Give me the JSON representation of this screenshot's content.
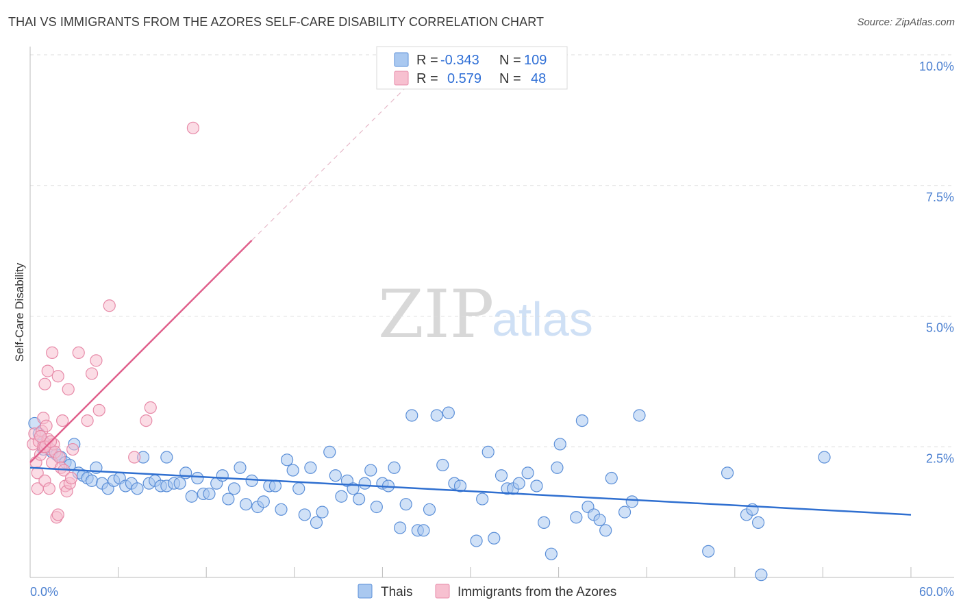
{
  "header": {
    "title": "THAI VS IMMIGRANTS FROM THE AZORES SELF-CARE DISABILITY CORRELATION CHART",
    "source": "Source: ZipAtlas.com"
  },
  "watermark": {
    "part1": "ZIP",
    "part2": "atlas"
  },
  "colors": {
    "thai_fill": "#a9c8f0",
    "thai_stroke": "#5b8fd8",
    "thai_line": "#2f6fd0",
    "azores_fill": "#f7c0d0",
    "azores_stroke": "#e78aa8",
    "azores_line": "#e0608c",
    "tick_label": "#4a7fd0",
    "grid": "#dddddd"
  },
  "legend": {
    "rows": [
      {
        "r_label": "R =",
        "r_value": "-0.343",
        "n_label": "N =",
        "n_value": "109"
      },
      {
        "r_label": "R =",
        "r_value": "0.579",
        "n_label": "N =",
        "n_value": "48"
      }
    ]
  },
  "chart_data": {
    "type": "scatter",
    "title": "THAI VS IMMIGRANTS FROM THE AZORES SELF-CARE DISABILITY CORRELATION CHART",
    "xlabel": "",
    "ylabel": "Self-Care Disability",
    "xlim": [
      0,
      60
    ],
    "ylim": [
      0,
      10.0
    ],
    "x_tick_labels": [
      "0.0%",
      "60.0%"
    ],
    "y_ticks": [
      2.5,
      5.0,
      7.5,
      10.0
    ],
    "y_tick_labels": [
      "2.5%",
      "5.0%",
      "7.5%",
      "10.0%"
    ],
    "series": [
      {
        "name": "Thais",
        "points": [
          [
            0.3,
            2.95
          ],
          [
            0.6,
            2.75
          ],
          [
            0.9,
            2.6
          ],
          [
            1.2,
            2.5
          ],
          [
            1.5,
            2.4
          ],
          [
            1.8,
            2.35
          ],
          [
            2.1,
            2.3
          ],
          [
            2.4,
            2.2
          ],
          [
            2.7,
            2.15
          ],
          [
            3.0,
            2.55
          ],
          [
            3.3,
            2.0
          ],
          [
            3.6,
            1.95
          ],
          [
            3.9,
            1.9
          ],
          [
            4.2,
            1.85
          ],
          [
            4.5,
            2.1
          ],
          [
            4.9,
            1.8
          ],
          [
            5.3,
            1.7
          ],
          [
            5.7,
            1.85
          ],
          [
            6.1,
            1.9
          ],
          [
            6.5,
            1.75
          ],
          [
            6.9,
            1.8
          ],
          [
            7.3,
            1.7
          ],
          [
            7.7,
            2.3
          ],
          [
            8.1,
            1.8
          ],
          [
            8.5,
            1.85
          ],
          [
            8.9,
            1.75
          ],
          [
            9.3,
            1.75
          ],
          [
            9.3,
            2.3
          ],
          [
            9.8,
            1.8
          ],
          [
            10.2,
            1.8
          ],
          [
            10.6,
            2.0
          ],
          [
            11.0,
            1.55
          ],
          [
            11.4,
            1.9
          ],
          [
            11.8,
            1.6
          ],
          [
            12.2,
            1.6
          ],
          [
            12.7,
            1.8
          ],
          [
            13.1,
            1.95
          ],
          [
            13.5,
            1.5
          ],
          [
            13.9,
            1.7
          ],
          [
            14.3,
            2.1
          ],
          [
            14.7,
            1.4
          ],
          [
            15.1,
            1.85
          ],
          [
            15.5,
            1.35
          ],
          [
            15.9,
            1.45
          ],
          [
            16.3,
            1.75
          ],
          [
            16.7,
            1.75
          ],
          [
            17.1,
            1.3
          ],
          [
            17.5,
            2.25
          ],
          [
            17.9,
            2.05
          ],
          [
            18.3,
            1.7
          ],
          [
            18.7,
            1.2
          ],
          [
            19.1,
            2.1
          ],
          [
            19.5,
            1.05
          ],
          [
            19.9,
            1.25
          ],
          [
            20.4,
            2.4
          ],
          [
            20.8,
            1.95
          ],
          [
            21.2,
            1.55
          ],
          [
            21.6,
            1.85
          ],
          [
            22.0,
            1.7
          ],
          [
            22.4,
            1.5
          ],
          [
            22.8,
            1.8
          ],
          [
            23.2,
            2.05
          ],
          [
            23.6,
            1.35
          ],
          [
            24.0,
            1.8
          ],
          [
            24.4,
            1.75
          ],
          [
            24.8,
            2.1
          ],
          [
            25.2,
            0.95
          ],
          [
            25.6,
            1.4
          ],
          [
            26.0,
            3.1
          ],
          [
            26.4,
            0.9
          ],
          [
            26.8,
            0.9
          ],
          [
            27.2,
            1.3
          ],
          [
            27.7,
            3.1
          ],
          [
            28.1,
            2.15
          ],
          [
            28.5,
            3.15
          ],
          [
            28.9,
            1.8
          ],
          [
            29.3,
            1.75
          ],
          [
            30.4,
            0.7
          ],
          [
            30.8,
            1.5
          ],
          [
            31.2,
            2.4
          ],
          [
            31.6,
            0.75
          ],
          [
            32.1,
            1.95
          ],
          [
            32.5,
            1.7
          ],
          [
            32.9,
            1.7
          ],
          [
            33.3,
            1.8
          ],
          [
            33.9,
            2.0
          ],
          [
            34.5,
            1.75
          ],
          [
            35.0,
            1.05
          ],
          [
            35.5,
            0.45
          ],
          [
            35.9,
            2.1
          ],
          [
            36.1,
            2.55
          ],
          [
            37.2,
            1.15
          ],
          [
            37.6,
            3.0
          ],
          [
            38.0,
            1.35
          ],
          [
            38.4,
            1.2
          ],
          [
            38.8,
            1.1
          ],
          [
            39.2,
            0.9
          ],
          [
            39.6,
            1.9
          ],
          [
            40.5,
            1.25
          ],
          [
            41.0,
            1.45
          ],
          [
            41.5,
            3.1
          ],
          [
            46.2,
            0.5
          ],
          [
            47.5,
            2.0
          ],
          [
            48.8,
            1.2
          ],
          [
            49.2,
            1.3
          ],
          [
            49.6,
            1.05
          ],
          [
            49.8,
            0.05
          ],
          [
            54.1,
            2.3
          ],
          [
            0.9,
            2.45
          ]
        ]
      },
      {
        "name": "Immigrants from the Azores",
        "points": [
          [
            0.2,
            2.55
          ],
          [
            0.3,
            2.75
          ],
          [
            0.4,
            2.2
          ],
          [
            0.5,
            2.0
          ],
          [
            0.5,
            1.7
          ],
          [
            0.6,
            2.6
          ],
          [
            0.7,
            2.35
          ],
          [
            0.8,
            2.8
          ],
          [
            0.9,
            2.5
          ],
          [
            0.9,
            3.05
          ],
          [
            1.0,
            1.85
          ],
          [
            1.0,
            3.7
          ],
          [
            1.1,
            2.55
          ],
          [
            1.1,
            2.9
          ],
          [
            1.2,
            2.65
          ],
          [
            1.2,
            3.95
          ],
          [
            1.3,
            1.7
          ],
          [
            1.4,
            2.45
          ],
          [
            1.5,
            4.3
          ],
          [
            1.5,
            2.2
          ],
          [
            1.6,
            2.55
          ],
          [
            1.7,
            2.4
          ],
          [
            1.8,
            1.15
          ],
          [
            1.9,
            1.2
          ],
          [
            1.9,
            3.85
          ],
          [
            2.0,
            2.3
          ],
          [
            2.1,
            2.1
          ],
          [
            2.2,
            3.0
          ],
          [
            2.3,
            2.05
          ],
          [
            2.4,
            1.75
          ],
          [
            2.5,
            1.65
          ],
          [
            2.6,
            3.6
          ],
          [
            2.7,
            1.8
          ],
          [
            2.8,
            1.9
          ],
          [
            2.9,
            2.45
          ],
          [
            3.3,
            4.3
          ],
          [
            3.9,
            3.0
          ],
          [
            4.2,
            3.9
          ],
          [
            4.5,
            4.15
          ],
          [
            4.7,
            3.2
          ],
          [
            5.4,
            5.2
          ],
          [
            7.1,
            2.3
          ],
          [
            7.9,
            3.0
          ],
          [
            8.2,
            3.25
          ],
          [
            11.1,
            8.6
          ],
          [
            1.0,
            2.5
          ],
          [
            1.4,
            2.6
          ],
          [
            0.7,
            2.7
          ]
        ]
      }
    ],
    "trend_lines": [
      {
        "series": "Thais",
        "x": [
          0,
          60
        ],
        "y": [
          2.1,
          1.2
        ]
      },
      {
        "series": "Immigrants from the Azores",
        "solid_x": [
          0,
          15.1
        ],
        "solid_y": [
          2.2,
          6.45
        ],
        "dashed_x": [
          15.1,
          25.5
        ],
        "dashed_y": [
          6.45,
          9.35
        ]
      }
    ],
    "legend_items": [
      "Thais",
      "Immigrants from the Azores"
    ]
  }
}
